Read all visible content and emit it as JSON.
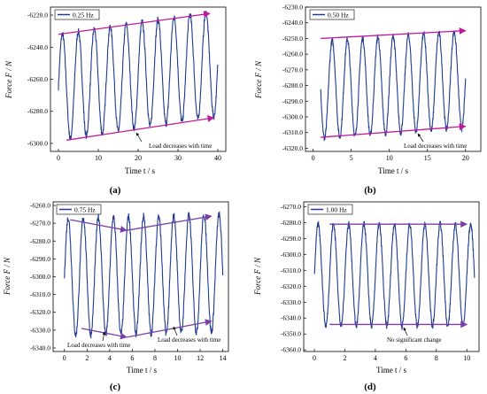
{
  "figure": {
    "panels": [
      {
        "id": "a",
        "caption": "(a)",
        "chart_data": {
          "type": "line",
          "legend": "0.25 Hz",
          "legend_position": "top-left",
          "xlabel": "Time t / s",
          "ylabel": "Force F / N",
          "xlim": [
            -2,
            42
          ],
          "ylim": [
            -6305,
            -6215
          ],
          "xticks": [
            0,
            10,
            20,
            30,
            40
          ],
          "yticks": [
            -6300.0,
            -6280.0,
            -6260.0,
            -6240.0,
            -6220.0
          ],
          "ytick_decimals": 1,
          "series": [
            {
              "frequency_hz": 0.25,
              "t_start": 0,
              "t_end": 40,
              "mean_start": -6265,
              "mean_end": -6250,
              "amplitude": 33,
              "color": "#1f3a93"
            }
          ],
          "annotation": "Load decreases with time",
          "trend_lines": [
            {
              "from": [
                0,
                -6232
              ],
              "to": [
                38,
                -6219
              ],
              "color": "#c2189b"
            },
            {
              "from": [
                2,
                -6298
              ],
              "to": [
                39,
                -6284
              ],
              "color": "#c2189b"
            }
          ]
        }
      },
      {
        "id": "b",
        "caption": "(b)",
        "chart_data": {
          "type": "line",
          "legend": "0.50 Hz",
          "legend_position": "top-left",
          "xlabel": "Time t / s",
          "ylabel": "Force F / N",
          "xlim": [
            -1,
            22
          ],
          "ylim": [
            -6322,
            -6230
          ],
          "xticks": [
            0,
            5,
            10,
            15,
            20
          ],
          "yticks": [
            -6320.0,
            -6310.0,
            -6300.0,
            -6290.0,
            -6280.0,
            -6270.0,
            -6260.0,
            -6250.0,
            -6240.0,
            -6230.0
          ],
          "ytick_decimals": 1,
          "series": [
            {
              "frequency_hz": 0.5,
              "t_start": 1,
              "t_end": 20,
              "mean_start": -6283,
              "mean_end": -6276,
              "amplitude": 31,
              "color": "#1f3a93"
            }
          ],
          "annotation": "Load decreases with time",
          "trend_lines": [
            {
              "from": [
                1,
                -6250
              ],
              "to": [
                20,
                -6245
              ],
              "color": "#c2189b"
            },
            {
              "from": [
                1,
                -6313
              ],
              "to": [
                20,
                -6306
              ],
              "color": "#c2189b"
            }
          ]
        }
      },
      {
        "id": "c",
        "caption": "(c)",
        "chart_data": {
          "type": "line",
          "legend": "0.75 Hz",
          "legend_position": "top-left",
          "xlabel": "Time t / s",
          "ylabel": "Force F / N",
          "xlim": [
            -1,
            14.5
          ],
          "ylim": [
            -6342,
            -6258
          ],
          "xticks": [
            0,
            2,
            4,
            6,
            8,
            10,
            12,
            14
          ],
          "yticks": [
            -6340.0,
            -6330.0,
            -6320.0,
            -6310.0,
            -6300.0,
            -6290.0,
            -6280.0,
            -6270.0,
            -6260.0
          ],
          "ytick_decimals": 1,
          "series": [
            {
              "frequency_hz": 0.75,
              "t_start": 0,
              "t_end": 14,
              "mean_start": -6300,
              "mean_end": -6298,
              "amplitude": 33,
              "color": "#1f3a93"
            }
          ],
          "annotations": [
            "Load decreases with time",
            "Load decreases with time"
          ],
          "trend_lines": [
            {
              "from": [
                0.5,
                -6268
              ],
              "to": [
                5.5,
                -6274
              ],
              "color": "#7a3ea6"
            },
            {
              "from": [
                5.5,
                -6274
              ],
              "to": [
                13,
                -6266
              ],
              "color": "#7a3ea6"
            },
            {
              "from": [
                1.5,
                -6329
              ],
              "to": [
                5.5,
                -6334
              ],
              "color": "#7a3ea6"
            },
            {
              "from": [
                5.5,
                -6334
              ],
              "to": [
                13,
                -6325
              ],
              "color": "#7a3ea6"
            }
          ]
        }
      },
      {
        "id": "d",
        "caption": "(d)",
        "chart_data": {
          "type": "line",
          "legend": "1.00 Hz",
          "legend_position": "top-left",
          "xlabel": "Time t / s",
          "ylabel": "Force F / N",
          "xlim": [
            -0.7,
            10.8
          ],
          "ylim": [
            -6361,
            -6267
          ],
          "xticks": [
            0,
            2,
            4,
            6,
            8,
            10
          ],
          "yticks": [
            -6360.0,
            -6350.0,
            -6340.0,
            -6330.0,
            -6320.0,
            -6310.0,
            -6300.0,
            -6290.0,
            -6280.0,
            -6270.0
          ],
          "ytick_decimals": 1,
          "series": [
            {
              "frequency_hz": 1.0,
              "t_start": 0,
              "t_end": 10.5,
              "mean_start": -6313,
              "mean_end": -6313,
              "amplitude": 32,
              "color": "#1f3a93"
            }
          ],
          "annotation": "No significant change",
          "trend_lines": [
            {
              "from": [
                1,
                -6281
              ],
              "to": [
                10,
                -6281
              ],
              "color": "#7a3ea6"
            },
            {
              "from": [
                1,
                -6344
              ],
              "to": [
                10,
                -6344
              ],
              "color": "#7a3ea6"
            }
          ]
        }
      }
    ]
  }
}
